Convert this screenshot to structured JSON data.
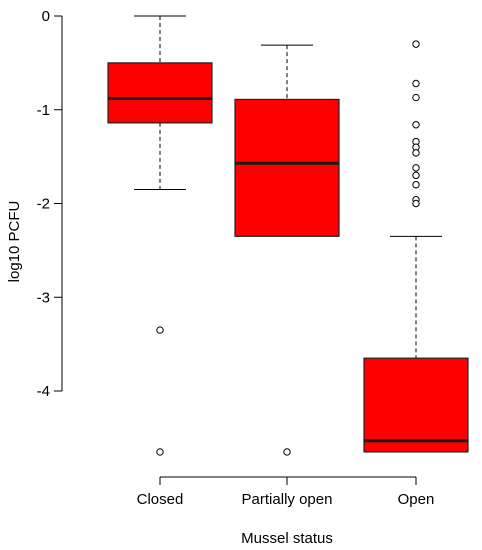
{
  "chart_data": {
    "type": "box",
    "title": "",
    "xlabel": "Mussel status",
    "ylabel": "log10 PCFU",
    "ylim": [
      -4.7,
      0
    ],
    "yticks": [
      0,
      -1,
      -2,
      -3,
      -4
    ],
    "ytick_labels": [
      "0",
      "-1",
      "-2",
      "-3",
      "-4"
    ],
    "categories": [
      "Closed",
      "Partially open",
      "Open"
    ],
    "box_color": "#ff0000",
    "boxes": [
      {
        "category": "Closed",
        "whisker_low": -1.85,
        "q1": -1.14,
        "median": -0.88,
        "q3": -0.5,
        "whisker_high": 0.0,
        "outliers": [
          -3.35,
          -4.65
        ]
      },
      {
        "category": "Partially open",
        "whisker_low": -2.35,
        "q1": -2.35,
        "median": -1.57,
        "q3": -0.89,
        "whisker_high": -0.31,
        "outliers": [
          -4.65
        ]
      },
      {
        "category": "Open",
        "whisker_low": -4.65,
        "q1": -4.65,
        "median": -4.53,
        "q3": -3.65,
        "whisker_high": -2.35,
        "outliers": [
          -0.3,
          -0.72,
          -0.87,
          -1.16,
          -1.34,
          -1.4,
          -1.46,
          -1.62,
          -1.7,
          -1.8,
          -1.96,
          -2.0
        ]
      }
    ]
  }
}
